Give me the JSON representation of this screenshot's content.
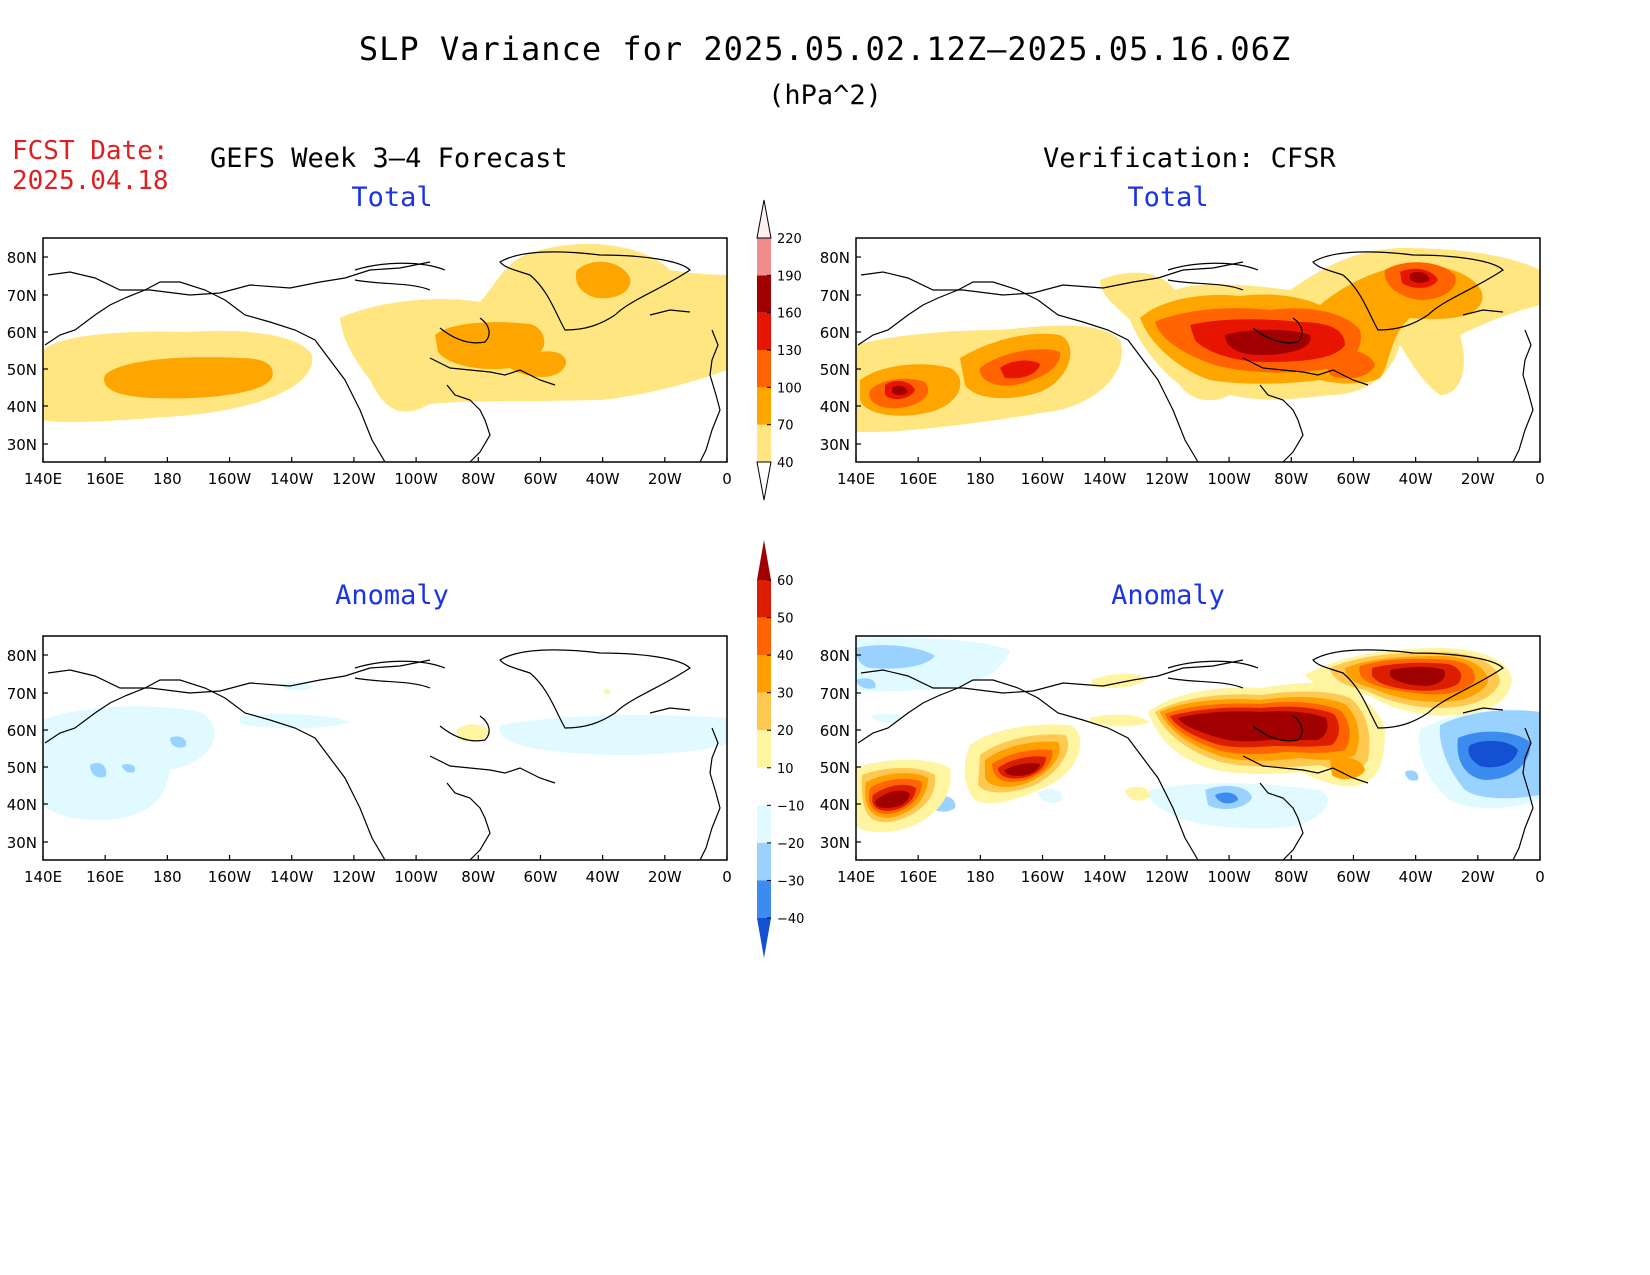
{
  "title": "SLP Variance for 2025.05.02.12Z–2025.05.16.06Z",
  "units": "(hPa^2)",
  "fcst_label": "FCST Date:",
  "fcst_date": "2025.04.18",
  "left_column_title": "GEFS Week 3–4 Forecast",
  "right_column_title": "Verification: CFSR",
  "panel_titles": {
    "top": "Total",
    "bottom": "Anomaly"
  },
  "lat_labels": [
    "80N",
    "70N",
    "60N",
    "50N",
    "40N",
    "30N"
  ],
  "lon_labels": [
    "140E",
    "160E",
    "180",
    "160W",
    "140W",
    "120W",
    "100W",
    "80W",
    "60W",
    "40W",
    "20W",
    "0"
  ],
  "colorbar_total": {
    "levels": [
      "40",
      "70",
      "100",
      "130",
      "160",
      "190",
      "220"
    ],
    "colors": [
      "#ffe680",
      "#ffa500",
      "#ff6400",
      "#e61400",
      "#a00000",
      "#f08c8c",
      "#ffd2d2",
      "#fff0f0"
    ]
  },
  "colorbar_anomaly": {
    "levels": [
      "60",
      "50",
      "40",
      "30",
      "20",
      "10",
      "−10",
      "−20",
      "−30",
      "−40"
    ],
    "colors": [
      "#a00000",
      "#dc1e00",
      "#ff6400",
      "#ffa000",
      "#ffc850",
      "#fff5a0",
      "#ffffff",
      "#e0faff",
      "#9ad2ff",
      "#3c8cf0",
      "#1450d2"
    ]
  }
}
